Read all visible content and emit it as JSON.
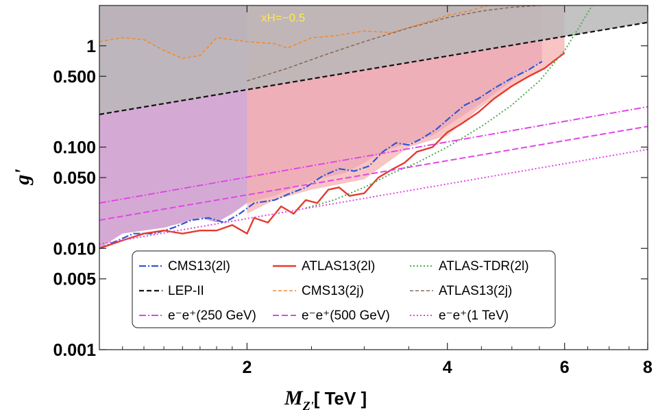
{
  "chart_data": {
    "type": "line",
    "xscale": "log",
    "yscale": "log",
    "xlim": [
      1.2,
      8.0
    ],
    "ylim": [
      0.001,
      2.5
    ],
    "xticks": [
      {
        "v": 2,
        "label": "2"
      },
      {
        "v": 4,
        "label": "4"
      },
      {
        "v": 6,
        "label": "6"
      },
      {
        "v": 8,
        "label": "8"
      }
    ],
    "yticks": [
      {
        "v": 1,
        "label": "1"
      },
      {
        "v": 0.5,
        "label": "0.500"
      },
      {
        "v": 0.1,
        "label": "0.100"
      },
      {
        "v": 0.05,
        "label": "0.050"
      },
      {
        "v": 0.01,
        "label": "0.010"
      },
      {
        "v": 0.005,
        "label": "0.005"
      },
      {
        "v": 0.001,
        "label": "0.001"
      }
    ],
    "xlabel_main": "M",
    "xlabel_sub": "Z'",
    "xlabel_unit": "[ TeV ]",
    "ylabel": "g'",
    "annotation": {
      "text": "xH=−0.5",
      "x": 2.1,
      "y": 1.9,
      "color": "#ffe94a"
    },
    "regions": [
      {
        "name": "CMS13(2j) excluded",
        "color": "#c07a6a",
        "opacity": 0.75,
        "upper": [
          [
            1.2,
            2.5
          ],
          [
            8,
            2.5
          ]
        ],
        "lower": [
          [
            1.2,
            1.1
          ],
          [
            1.3,
            1.2
          ],
          [
            1.4,
            1.15
          ],
          [
            1.5,
            0.9
          ],
          [
            1.6,
            0.75
          ],
          [
            1.7,
            0.8
          ],
          [
            1.8,
            1.2
          ],
          [
            1.9,
            1.15
          ],
          [
            2.0,
            1.1
          ],
          [
            2.2,
            1.05
          ],
          [
            2.3,
            0.95
          ],
          [
            2.5,
            1.2
          ],
          [
            2.7,
            1.25
          ],
          [
            3.0,
            1.4
          ],
          [
            3.3,
            1.35
          ],
          [
            3.6,
            1.6
          ],
          [
            4.0,
            2.0
          ],
          [
            4.3,
            2.2
          ],
          [
            4.6,
            2.5
          ]
        ]
      },
      {
        "name": "ATLAS13(2j) excluded",
        "color": "#a6817a",
        "opacity": 0.7,
        "upper": [
          [
            2.0,
            2.5
          ],
          [
            5.5,
            2.5
          ]
        ],
        "lower": [
          [
            2.0,
            0.45
          ],
          [
            2.3,
            0.6
          ],
          [
            2.6,
            0.8
          ],
          [
            3.0,
            1.1
          ],
          [
            3.5,
            1.5
          ],
          [
            4.0,
            1.9
          ],
          [
            4.5,
            2.2
          ],
          [
            5.0,
            2.4
          ],
          [
            5.5,
            2.5
          ]
        ]
      },
      {
        "name": "dilepton excluded",
        "color": "#c58ec6",
        "opacity": 0.75,
        "upper": [
          [
            1.2,
            2.5
          ],
          [
            5.55,
            2.5
          ]
        ],
        "lower": [
          [
            1.2,
            0.01
          ],
          [
            1.3,
            0.014
          ],
          [
            1.5,
            0.016
          ],
          [
            1.7,
            0.02
          ],
          [
            1.8,
            0.018
          ],
          [
            1.9,
            0.022
          ],
          [
            2.0,
            0.028
          ],
          [
            2.2,
            0.033
          ],
          [
            2.4,
            0.042
          ],
          [
            2.6,
            0.05
          ],
          [
            2.8,
            0.055
          ],
          [
            3.0,
            0.07
          ],
          [
            3.2,
            0.09
          ],
          [
            3.5,
            0.11
          ],
          [
            3.8,
            0.13
          ],
          [
            4.2,
            0.2
          ],
          [
            4.6,
            0.3
          ],
          [
            5.0,
            0.45
          ],
          [
            5.3,
            0.6
          ],
          [
            5.55,
            0.7
          ]
        ]
      },
      {
        "name": "ATLAS13(2l) excluded",
        "color": "#f7b0b0",
        "opacity": 0.75,
        "upper": [
          [
            5.55,
            2.5
          ],
          [
            6.0,
            2.5
          ]
        ],
        "lower": [
          [
            2.0,
            0.022
          ],
          [
            2.2,
            0.03
          ],
          [
            2.5,
            0.038
          ],
          [
            3.0,
            0.048
          ],
          [
            3.5,
            0.1
          ],
          [
            4.0,
            0.13
          ],
          [
            4.5,
            0.25
          ],
          [
            5.0,
            0.4
          ],
          [
            5.5,
            0.55
          ],
          [
            6.0,
            0.85
          ]
        ]
      },
      {
        "name": "LEP-II excluded",
        "color": "#b9b9b9",
        "opacity": 0.85,
        "upper": [
          [
            1.2,
            2.5
          ],
          [
            8,
            2.5
          ]
        ],
        "lower": [
          [
            1.2,
            0.21
          ],
          [
            8,
            1.7
          ]
        ]
      }
    ],
    "series": [
      {
        "name": "CMS13(2l)",
        "color": "#2f55d4",
        "dash": "10 3 2 3",
        "width": 2.2,
        "points": [
          [
            1.2,
            0.01
          ],
          [
            1.28,
            0.012
          ],
          [
            1.35,
            0.014
          ],
          [
            1.45,
            0.014
          ],
          [
            1.55,
            0.016
          ],
          [
            1.65,
            0.019
          ],
          [
            1.75,
            0.02
          ],
          [
            1.85,
            0.018
          ],
          [
            1.95,
            0.022
          ],
          [
            2.05,
            0.028
          ],
          [
            2.2,
            0.03
          ],
          [
            2.3,
            0.034
          ],
          [
            2.45,
            0.04
          ],
          [
            2.6,
            0.052
          ],
          [
            2.75,
            0.061
          ],
          [
            2.9,
            0.058
          ],
          [
            3.05,
            0.065
          ],
          [
            3.2,
            0.09
          ],
          [
            3.35,
            0.11
          ],
          [
            3.5,
            0.105
          ],
          [
            3.65,
            0.12
          ],
          [
            3.85,
            0.15
          ],
          [
            4.05,
            0.2
          ],
          [
            4.25,
            0.26
          ],
          [
            4.45,
            0.3
          ],
          [
            4.7,
            0.38
          ],
          [
            5.0,
            0.48
          ],
          [
            5.3,
            0.58
          ],
          [
            5.55,
            0.7
          ]
        ]
      },
      {
        "name": "ATLAS13(2l)",
        "color": "#e23b2e",
        "dash": "",
        "width": 2.4,
        "points": [
          [
            1.2,
            0.01
          ],
          [
            1.3,
            0.012
          ],
          [
            1.4,
            0.014
          ],
          [
            1.5,
            0.015
          ],
          [
            1.6,
            0.014
          ],
          [
            1.7,
            0.015
          ],
          [
            1.8,
            0.015
          ],
          [
            1.9,
            0.017
          ],
          [
            2.0,
            0.014
          ],
          [
            2.05,
            0.02
          ],
          [
            2.15,
            0.018
          ],
          [
            2.25,
            0.026
          ],
          [
            2.35,
            0.022
          ],
          [
            2.45,
            0.03
          ],
          [
            2.55,
            0.028
          ],
          [
            2.65,
            0.038
          ],
          [
            2.75,
            0.04
          ],
          [
            2.85,
            0.033
          ],
          [
            3.0,
            0.035
          ],
          [
            3.15,
            0.05
          ],
          [
            3.3,
            0.06
          ],
          [
            3.45,
            0.07
          ],
          [
            3.6,
            0.09
          ],
          [
            3.8,
            0.1
          ],
          [
            4.0,
            0.14
          ],
          [
            4.2,
            0.17
          ],
          [
            4.45,
            0.22
          ],
          [
            4.7,
            0.3
          ],
          [
            5.0,
            0.4
          ],
          [
            5.3,
            0.5
          ],
          [
            5.6,
            0.6
          ],
          [
            5.8,
            0.72
          ],
          [
            6.0,
            0.85
          ]
        ]
      },
      {
        "name": "ATLAS-TDR(2l)",
        "color": "#4ca84c",
        "dash": "2 3",
        "width": 2,
        "points": [
          [
            2.45,
            0.025
          ],
          [
            2.7,
            0.03
          ],
          [
            3.0,
            0.04
          ],
          [
            3.3,
            0.055
          ],
          [
            3.6,
            0.07
          ],
          [
            4.0,
            0.1
          ],
          [
            4.5,
            0.16
          ],
          [
            5.0,
            0.26
          ],
          [
            5.5,
            0.45
          ],
          [
            6.0,
            0.9
          ],
          [
            6.3,
            1.5
          ],
          [
            6.6,
            2.5
          ]
        ]
      },
      {
        "name": "LEP-II",
        "color": "#111111",
        "dash": "7 4",
        "width": 2.2,
        "points": [
          [
            1.2,
            0.21
          ],
          [
            8,
            1.7
          ]
        ]
      },
      {
        "name": "CMS13(2j)",
        "color": "#f08a33",
        "dash": "5 3",
        "width": 1.6,
        "points": [
          [
            1.2,
            1.1
          ],
          [
            1.3,
            1.2
          ],
          [
            1.4,
            1.15
          ],
          [
            1.5,
            0.9
          ],
          [
            1.6,
            0.75
          ],
          [
            1.7,
            0.8
          ],
          [
            1.8,
            1.2
          ],
          [
            1.9,
            1.15
          ],
          [
            2.0,
            1.1
          ],
          [
            2.2,
            1.05
          ],
          [
            2.3,
            0.95
          ],
          [
            2.5,
            1.2
          ],
          [
            2.7,
            1.25
          ],
          [
            3.0,
            1.4
          ],
          [
            3.3,
            1.35
          ],
          [
            3.6,
            1.6
          ],
          [
            4.0,
            2.0
          ],
          [
            4.3,
            2.2
          ],
          [
            4.6,
            2.5
          ]
        ]
      },
      {
        "name": "ATLAS13(2j)",
        "color": "#8a6a5a",
        "dash": "5 3",
        "width": 1.6,
        "points": [
          [
            2.0,
            0.45
          ],
          [
            2.3,
            0.6
          ],
          [
            2.6,
            0.8
          ],
          [
            3.0,
            1.1
          ],
          [
            3.5,
            1.5
          ],
          [
            4.0,
            1.9
          ],
          [
            4.5,
            2.2
          ],
          [
            5.0,
            2.4
          ],
          [
            5.5,
            2.5
          ]
        ]
      },
      {
        "name": "e⁻e⁺(250 GeV)",
        "color": "#e046e6",
        "dash": "10 3 2 3",
        "width": 2,
        "points": [
          [
            1.2,
            0.028
          ],
          [
            8,
            0.25
          ]
        ]
      },
      {
        "name": "e⁻e⁺(500 GeV)",
        "color": "#e046e6",
        "dash": "9 4",
        "width": 2,
        "points": [
          [
            1.2,
            0.019
          ],
          [
            8,
            0.16
          ]
        ]
      },
      {
        "name": "e⁻e⁺(1 TeV)",
        "color": "#e046e6",
        "dash": "2 3",
        "width": 2,
        "points": [
          [
            1.2,
            0.011
          ],
          [
            8,
            0.095
          ]
        ]
      }
    ],
    "legend": {
      "placement": "bottom-center",
      "entries": [
        {
          "label": "CMS13(2l)",
          "series": 0
        },
        {
          "label": "ATLAS13(2l)",
          "series": 1
        },
        {
          "label": "ATLAS-TDR(2l)",
          "series": 2
        },
        {
          "label": "LEP-II",
          "series": 3
        },
        {
          "label": "CMS13(2j)",
          "series": 4
        },
        {
          "label": "ATLAS13(2j)",
          "series": 5
        },
        {
          "label": "e⁻e⁺(250 GeV)",
          "series": 6
        },
        {
          "label": "e⁻e⁺(500 GeV)",
          "series": 7
        },
        {
          "label": "e⁻e⁺(1 TeV)",
          "series": 8
        }
      ]
    }
  }
}
